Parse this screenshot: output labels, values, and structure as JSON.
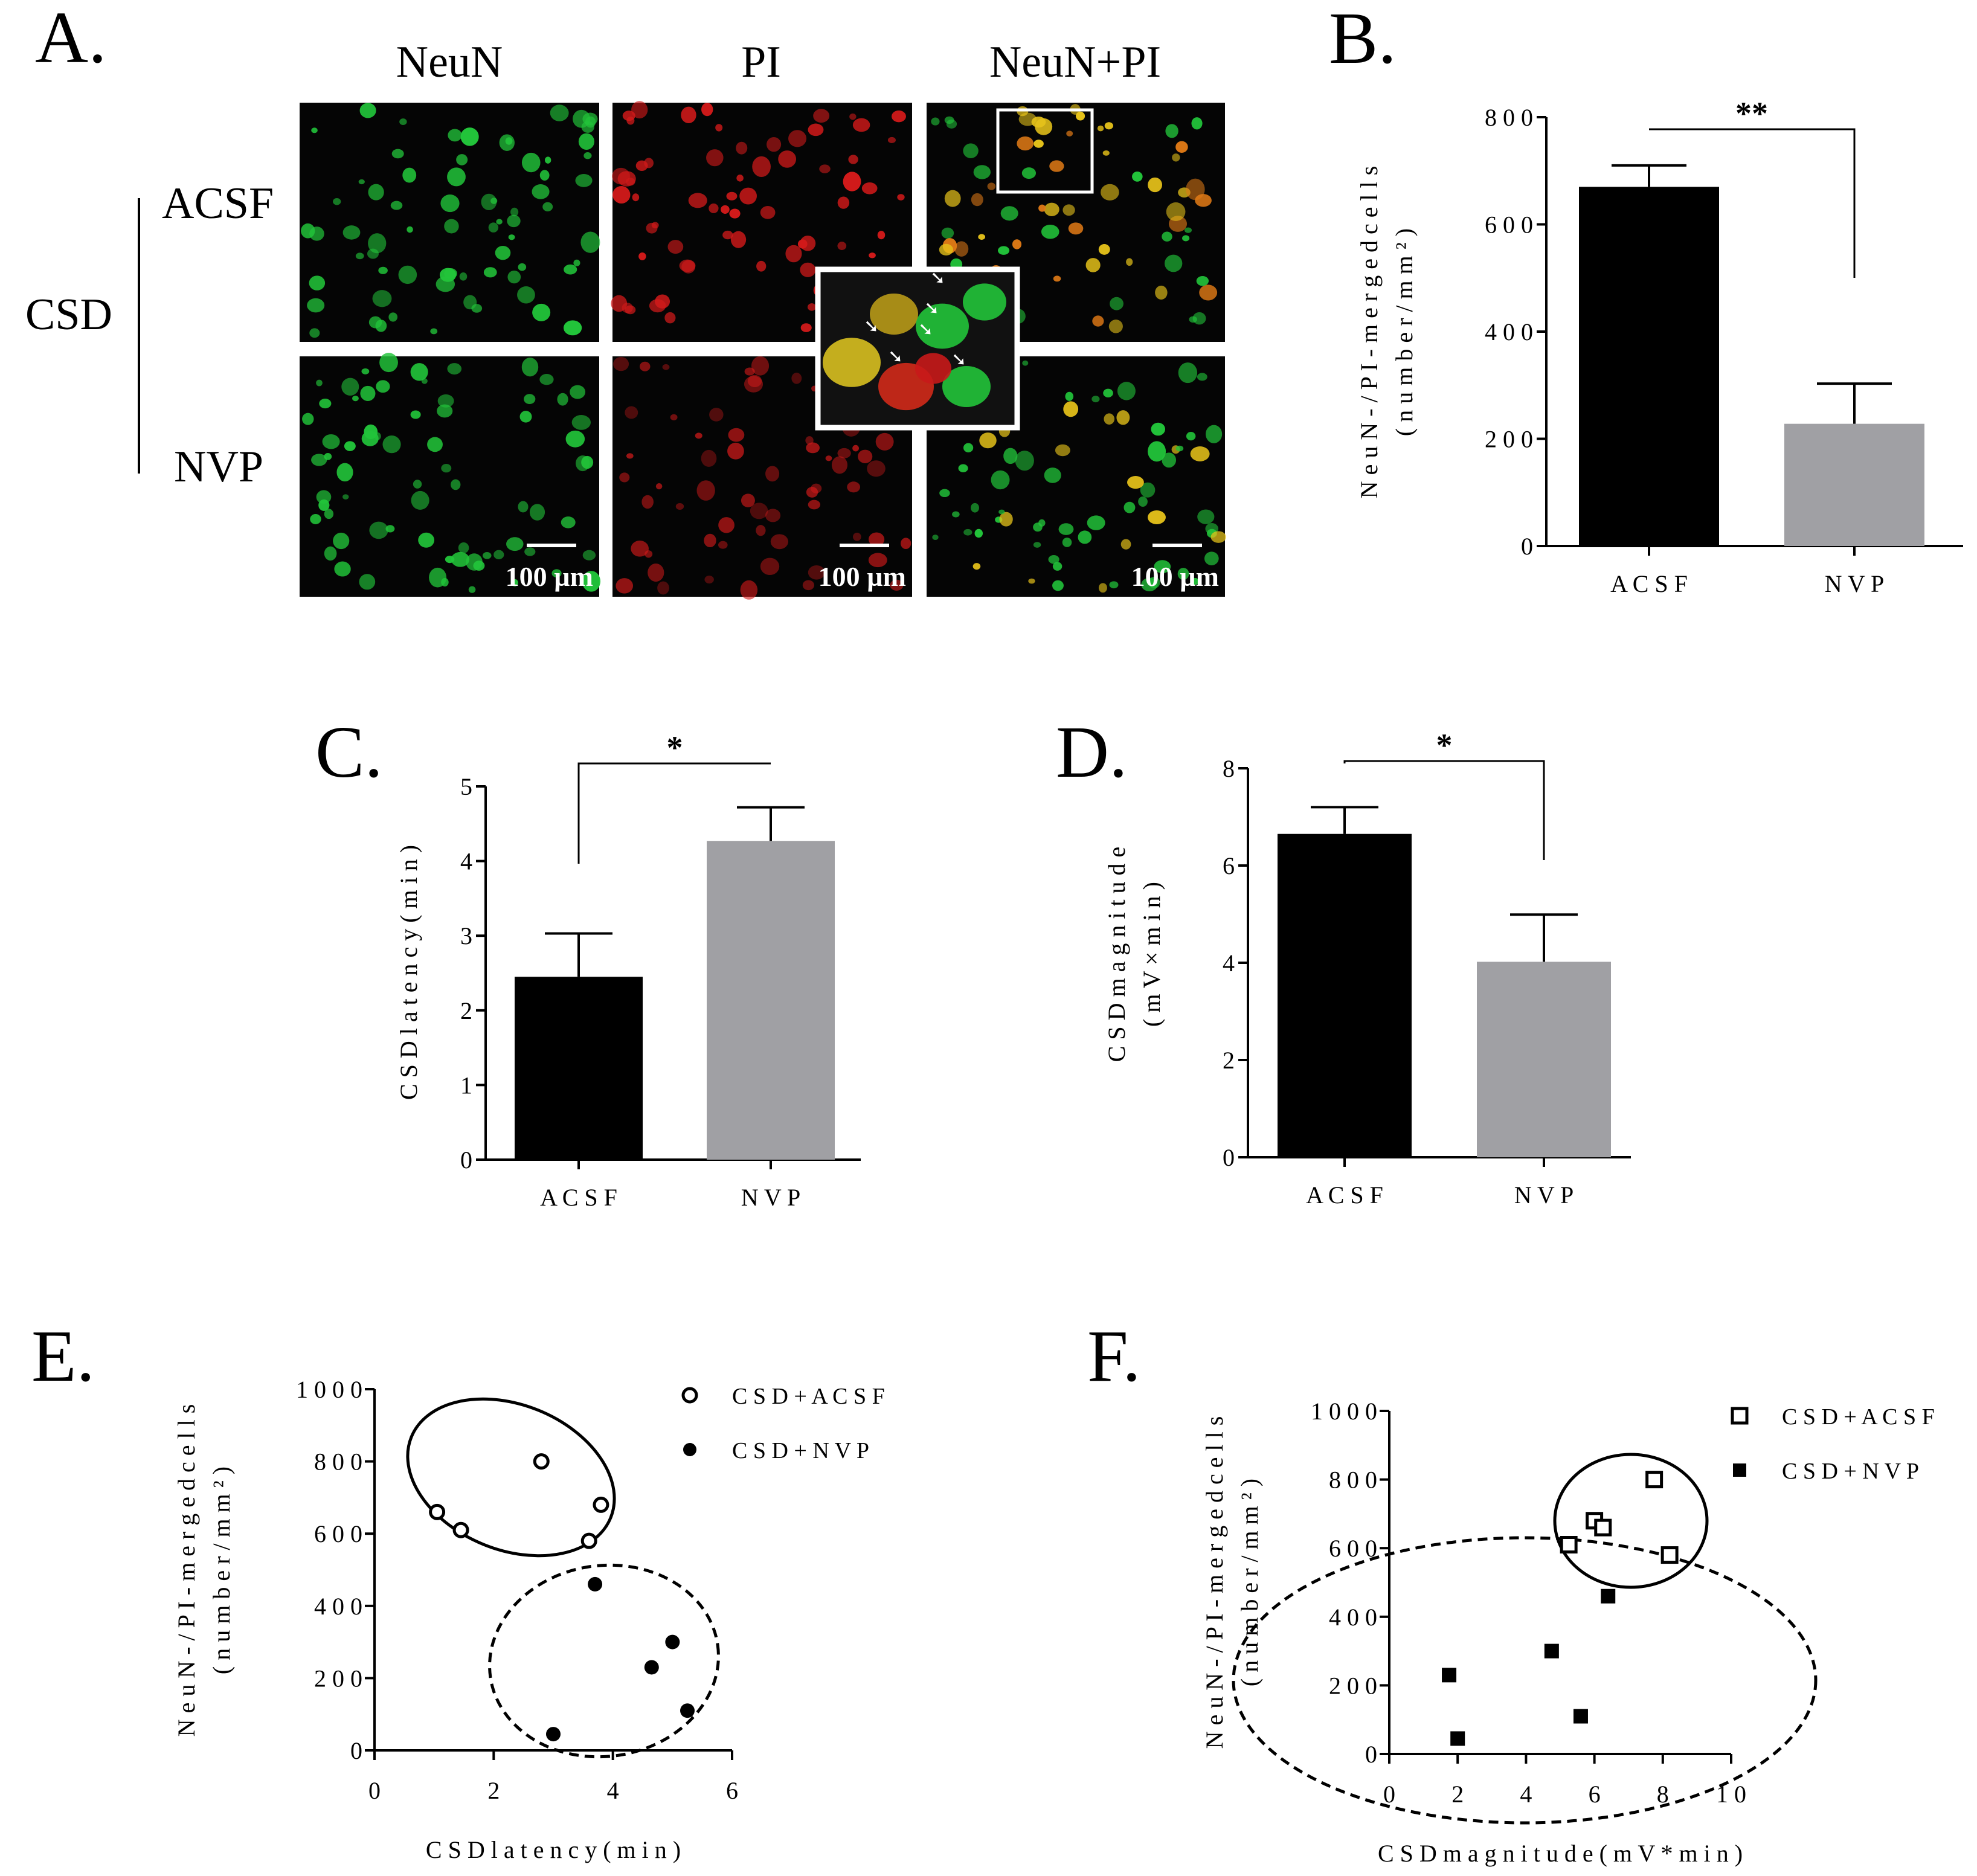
{
  "panels": {
    "A": {
      "letter": "A.",
      "col_titles": [
        "NeuN",
        "PI",
        "NeuN+PI"
      ],
      "group": "CSD",
      "row_labels": [
        "ACSF",
        "NVP"
      ],
      "scale_bar": "100 µm"
    }
  },
  "colors": {
    "acsf_bar": "#000000",
    "nvp_bar": "#a0a0a4",
    "neun": "#22c43a",
    "pi": "#d21a1a",
    "merged": "#e6c21a"
  },
  "chart_data": [
    {
      "panel": "B.",
      "type": "bar",
      "categories": [
        "A C S F",
        "N V P"
      ],
      "values": [
        670,
        228
      ],
      "errors": [
        40,
        75
      ],
      "ylabel_lines": [
        "N e u N - / P I -  m e r g e d  c e l l s",
        "( n u m  b e r  /  m  m   ² )"
      ],
      "ylim": [
        0,
        800
      ],
      "yticks": [
        "0",
        "2 0 0",
        "4 0 0",
        "6 0 0",
        "8 0 0"
      ],
      "significance": "**"
    },
    {
      "panel": "C.",
      "type": "bar",
      "categories": [
        "A C S F",
        "N V P"
      ],
      "values": [
        2.45,
        4.27
      ],
      "errors": [
        0.58,
        0.45
      ],
      "ylabel_lines": [
        "C S D  l a t e n c y  ( m  i n )"
      ],
      "ylim": [
        0,
        5
      ],
      "yticks": [
        "0",
        "1",
        "2",
        "3",
        "4",
        "5"
      ],
      "significance": "*"
    },
    {
      "panel": "D.",
      "type": "bar",
      "categories": [
        "A C S F",
        "N V P"
      ],
      "values": [
        6.65,
        4.02
      ],
      "errors": [
        0.55,
        0.97
      ],
      "ylabel_lines": [
        "C S D  m a g n i t u d e",
        "( m V × m i n )"
      ],
      "ylim": [
        0,
        8
      ],
      "yticks": [
        "0",
        "2",
        "4",
        "6",
        "8"
      ],
      "significance": "*"
    },
    {
      "panel": "E.",
      "type": "scatter",
      "xlabel": "C S D  l a t e n c y  ( m  i n )",
      "ylabel_lines": [
        "N e u N - / P I -  m e r g e d  c e l l s",
        "( n u m  b e r  /  m  m   ² )"
      ],
      "xlim": [
        0,
        6
      ],
      "ylim": [
        0,
        1000
      ],
      "xticks": [
        "0",
        "2",
        "4",
        "6"
      ],
      "yticks": [
        "0",
        "2 0 0",
        "4 0 0",
        "6 0 0",
        "8 0 0",
        "1 0 0 0"
      ],
      "series": [
        {
          "name": "C S D + A C S F",
          "marker": "open-circle",
          "points": [
            [
              1.05,
              660
            ],
            [
              1.45,
              610
            ],
            [
              2.8,
              800
            ],
            [
              3.6,
              580
            ],
            [
              3.8,
              680
            ]
          ]
        },
        {
          "name": "C S D + N V P",
          "marker": "filled-circle",
          "points": [
            [
              3.0,
              45
            ],
            [
              3.7,
              460
            ],
            [
              4.65,
              230
            ],
            [
              5.0,
              300
            ],
            [
              5.25,
              110
            ]
          ]
        }
      ]
    },
    {
      "panel": "F.",
      "type": "scatter",
      "xlabel": "C S D   m a g n i t u d e  ( m V * m  i n )",
      "ylabel_lines": [
        "N e u N - / P I -  m e r g e d  c e l l s",
        "( n u m  b e r  /  m  m   ² )"
      ],
      "xlim": [
        0,
        10
      ],
      "ylim": [
        0,
        1000
      ],
      "xticks": [
        "0",
        "2",
        "4",
        "6",
        "8",
        "1 0"
      ],
      "yticks": [
        "0",
        "2 0 0",
        "4 0 0",
        "6 0 0",
        "8 0 0",
        "1 0 0 0"
      ],
      "series": [
        {
          "name": "C S D + A C S F",
          "marker": "open-square",
          "points": [
            [
              5.25,
              610
            ],
            [
              6.0,
              680
            ],
            [
              6.25,
              660
            ],
            [
              7.75,
              800
            ],
            [
              8.2,
              580
            ]
          ]
        },
        {
          "name": "C S D + N V P",
          "marker": "filled-square",
          "points": [
            [
              1.75,
              230
            ],
            [
              2.0,
              45
            ],
            [
              4.75,
              300
            ],
            [
              5.6,
              110
            ],
            [
              6.4,
              460
            ]
          ]
        }
      ]
    }
  ]
}
